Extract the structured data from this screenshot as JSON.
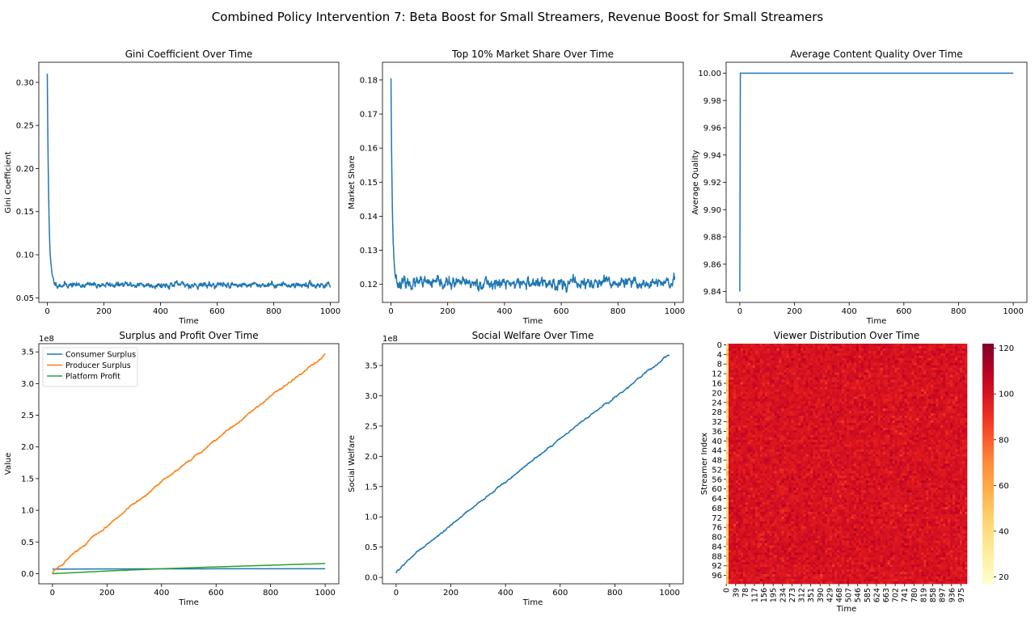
{
  "suptitle": "Combined Policy Intervention 7: Beta Boost for Small Streamers, Revenue Boost for Small Streamers",
  "chart_data": [
    {
      "type": "line",
      "title": "Gini Coefficient Over Time",
      "xlabel": "Time",
      "ylabel": "Gini Coefficient",
      "xlim": [
        -30,
        1030
      ],
      "ylim": [
        0.0447,
        0.3233
      ],
      "xticks": [
        0,
        200,
        400,
        600,
        800,
        1000
      ],
      "xtick_labels": [
        "0",
        "200",
        "400",
        "600",
        "800",
        "1000"
      ],
      "yticks": [
        0.05,
        0.1,
        0.15,
        0.2,
        0.25,
        0.3
      ],
      "ytick_labels": [
        "0.05",
        "0.10",
        "0.15",
        "0.20",
        "0.25",
        "0.30"
      ],
      "series": [
        {
          "color": "#1f77b4",
          "generator": {
            "kind": "decay_noise",
            "n": 1001,
            "start": 0.31,
            "level": 0.065,
            "tau": 5.5,
            "noise": 0.0022,
            "seed": 11
          },
          "keypoints": [
            [
              0,
              0.31
            ],
            [
              5,
              0.16
            ],
            [
              10,
              0.1
            ],
            [
              20,
              0.069
            ],
            [
              100,
              0.065
            ],
            [
              500,
              0.064
            ],
            [
              1000,
              0.066
            ]
          ]
        }
      ]
    },
    {
      "type": "line",
      "title": "Top 10% Market Share Over Time",
      "xlabel": "Time",
      "ylabel": "Market Share",
      "xlim": [
        -30,
        1030
      ],
      "ylim": [
        0.1147,
        0.1852
      ],
      "xticks": [
        0,
        200,
        400,
        600,
        800,
        1000
      ],
      "xtick_labels": [
        "0",
        "200",
        "400",
        "600",
        "800",
        "1000"
      ],
      "yticks": [
        0.12,
        0.13,
        0.14,
        0.15,
        0.16,
        0.17,
        0.18
      ],
      "ytick_labels": [
        "0.12",
        "0.13",
        "0.14",
        "0.15",
        "0.16",
        "0.17",
        "0.18"
      ],
      "series": [
        {
          "color": "#1f77b4",
          "generator": {
            "kind": "decay_noise",
            "n": 1001,
            "start": 0.1805,
            "level": 0.1203,
            "tau": 5.0,
            "noise": 0.0011,
            "seed": 23
          },
          "keypoints": [
            [
              0,
              0.1805
            ],
            [
              5,
              0.142
            ],
            [
              10,
              0.128
            ],
            [
              20,
              0.121
            ],
            [
              100,
              0.12
            ],
            [
              500,
              0.12
            ],
            [
              1000,
              0.12
            ]
          ]
        }
      ]
    },
    {
      "type": "line",
      "title": "Average Content Quality Over Time",
      "xlabel": "Time",
      "ylabel": "Average Quality",
      "xlim": [
        -50,
        1050
      ],
      "ylim": [
        9.832,
        10.008
      ],
      "xticks": [
        0,
        200,
        400,
        600,
        800,
        1000
      ],
      "xtick_labels": [
        "0",
        "200",
        "400",
        "600",
        "800",
        "1000"
      ],
      "yticks": [
        9.84,
        9.86,
        9.88,
        9.9,
        9.92,
        9.94,
        9.96,
        9.98,
        10.0
      ],
      "ytick_labels": [
        "9.84",
        "9.86",
        "9.88",
        "9.90",
        "9.92",
        "9.94",
        "9.96",
        "9.98",
        "10.00"
      ],
      "series": [
        {
          "color": "#1f77b4",
          "points": [
            [
              0,
              9.84
            ],
            [
              1,
              9.92
            ],
            [
              2,
              10.0
            ],
            [
              1000,
              10.0
            ]
          ]
        }
      ]
    },
    {
      "type": "line",
      "title": "Surplus and Profit Over Time",
      "xlabel": "Time",
      "ylabel": "Value",
      "offset_text": "1e8",
      "xlim": [
        -50,
        1050
      ],
      "ylim": [
        -0.16,
        3.63
      ],
      "xticks": [
        0,
        200,
        400,
        600,
        800,
        1000
      ],
      "xtick_labels": [
        "0",
        "200",
        "400",
        "600",
        "800",
        "1000"
      ],
      "yticks": [
        0.0,
        0.5,
        1.0,
        1.5,
        2.0,
        2.5,
        3.0,
        3.5
      ],
      "ytick_labels": [
        "0.0",
        "0.5",
        "1.0",
        "1.5",
        "2.0",
        "2.5",
        "3.0",
        "3.5"
      ],
      "legend_loc": "upper-left",
      "series": [
        {
          "name": "Consumer Surplus",
          "color": "#1f77b4",
          "points": [
            [
              0,
              0.072
            ],
            [
              200,
              0.075
            ],
            [
              400,
              0.076
            ],
            [
              600,
              0.077
            ],
            [
              800,
              0.077
            ],
            [
              1000,
              0.078
            ]
          ]
        },
        {
          "name": "Producer Surplus",
          "color": "#ff7f0e",
          "generator": {
            "kind": "sqrtlin_noise",
            "n": 1001,
            "start": 0.0,
            "end": 3.45,
            "curve": 0.08,
            "noise": 0.004,
            "seed": 5
          },
          "keypoints": [
            [
              0,
              0.0
            ],
            [
              200,
              0.78
            ],
            [
              400,
              1.45
            ],
            [
              600,
              2.05
            ],
            [
              800,
              2.73
            ],
            [
              1000,
              3.45
            ]
          ]
        },
        {
          "name": "Platform Profit",
          "color": "#2ca02c",
          "points": [
            [
              0,
              0.0
            ],
            [
              200,
              0.042
            ],
            [
              400,
              0.078
            ],
            [
              600,
              0.107
            ],
            [
              800,
              0.133
            ],
            [
              1000,
              0.16
            ]
          ]
        }
      ]
    },
    {
      "type": "line",
      "title": "Social Welfare Over Time",
      "xlabel": "Time",
      "ylabel": "Social Welfare",
      "offset_text": "1e8",
      "xlim": [
        -50,
        1050
      ],
      "ylim": [
        -0.105,
        3.86
      ],
      "xticks": [
        0,
        200,
        400,
        600,
        800,
        1000
      ],
      "xtick_labels": [
        "0",
        "200",
        "400",
        "600",
        "800",
        "1000"
      ],
      "yticks": [
        0.0,
        0.5,
        1.0,
        1.5,
        2.0,
        2.5,
        3.0,
        3.5
      ],
      "ytick_labels": [
        "0.0",
        "0.5",
        "1.0",
        "1.5",
        "2.0",
        "2.5",
        "3.0",
        "3.5"
      ],
      "series": [
        {
          "color": "#1f77b4",
          "generator": {
            "kind": "sqrtlin_noise",
            "n": 1001,
            "start": 0.07,
            "end": 3.68,
            "curve": 0.08,
            "noise": 0.004,
            "seed": 9
          },
          "keypoints": [
            [
              0,
              0.07
            ],
            [
              200,
              0.95
            ],
            [
              400,
              1.57
            ],
            [
              600,
              2.2
            ],
            [
              800,
              2.9
            ],
            [
              1000,
              3.68
            ]
          ]
        }
      ]
    },
    {
      "type": "heatmap",
      "title": "Viewer Distribution Over Time",
      "xlabel": "Time",
      "ylabel": "Streamer Index",
      "rows": 100,
      "cols": 1001,
      "row_tick_labels": [
        "0",
        "4",
        "8",
        "12",
        "16",
        "20",
        "24",
        "28",
        "32",
        "36",
        "40",
        "44",
        "48",
        "52",
        "56",
        "60",
        "64",
        "68",
        "72",
        "76",
        "80",
        "84",
        "88",
        "92",
        "96"
      ],
      "col_tick_labels": [
        "0",
        "39",
        "78",
        "117",
        "156",
        "195",
        "234",
        "273",
        "312",
        "351",
        "390",
        "429",
        "468",
        "507",
        "546",
        "585",
        "624",
        "663",
        "702",
        "741",
        "780",
        "819",
        "858",
        "897",
        "936",
        "975"
      ],
      "colormap": "YlOrRd",
      "vmin": 17,
      "vmax": 122,
      "colorbar_ticks": [
        20,
        40,
        60,
        80,
        100,
        120
      ],
      "colorbar_tick_labels": [
        "20",
        "40",
        "60",
        "80",
        "100",
        "120"
      ],
      "value_generator": {
        "kind": "noise",
        "mean": 100,
        "sd": 4,
        "first_col": 45,
        "seed": 3
      }
    }
  ]
}
